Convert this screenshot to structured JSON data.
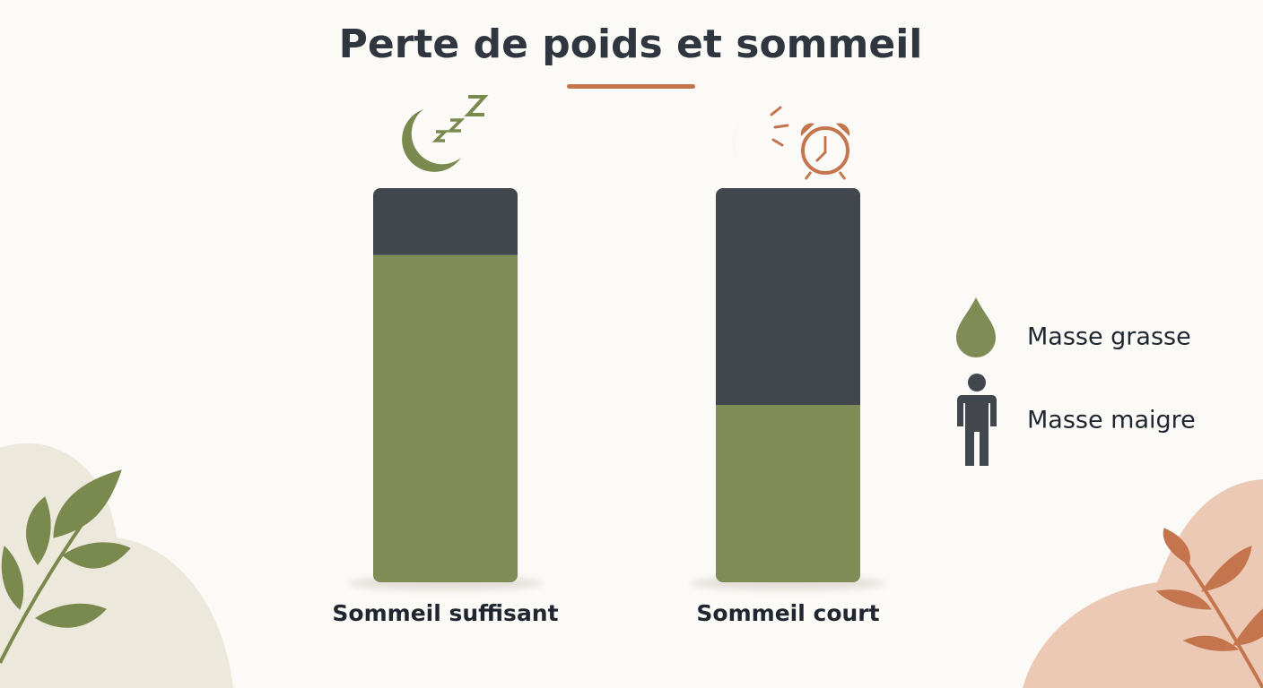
{
  "chart_data": {
    "type": "bar",
    "stacked": true,
    "title": "Perte de poids et sommeil",
    "categories": [
      "Sommeil suffisant",
      "Sommeil court"
    ],
    "series": [
      {
        "name": "Masse grasse",
        "color": "#7f8c55",
        "values": [
          83,
          45
        ]
      },
      {
        "name": "Masse maigre",
        "color": "#42474e",
        "values": [
          17,
          55
        ]
      }
    ]
  }
}
